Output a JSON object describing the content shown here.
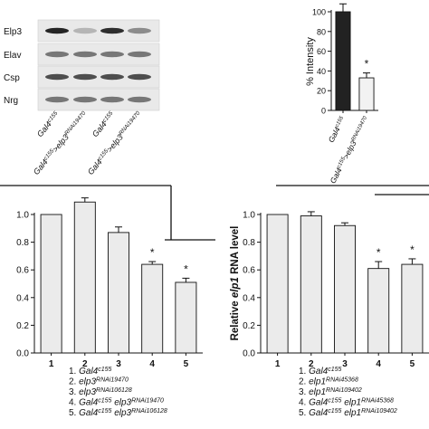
{
  "western_blot": {
    "rows": [
      "Elp3",
      "Elav",
      "Csp",
      "Nrg"
    ],
    "lane_labels": [
      {
        "base": "Gal4",
        "sup": "c155",
        "suffix": "",
        "suffix_sup": ""
      },
      {
        "base": "Gal4",
        "sup": "c155",
        "suffix": ">elp3",
        "suffix_sup": "RNAi19470"
      },
      {
        "base": "Gal4",
        "sup": "c155",
        "suffix": "",
        "suffix_sup": ""
      },
      {
        "base": "Gal4",
        "sup": "c155",
        "suffix": ">elp3",
        "suffix_sup": "RNAi19470"
      }
    ]
  },
  "chart_data": [
    {
      "id": "intensity",
      "type": "bar",
      "ylabel": "% Intensity",
      "ylim": [
        0,
        100
      ],
      "yticks": [
        0,
        20,
        40,
        60,
        80,
        100
      ],
      "categories": [
        {
          "base": "Gal4",
          "sup": "c155",
          "suffix": "",
          "suffix_sup": ""
        },
        {
          "base": "Gal4",
          "sup": "c155",
          "suffix": ">elp3",
          "suffix_sup": "RNAi19470"
        }
      ],
      "values": [
        100,
        33
      ],
      "errors": [
        8,
        5
      ],
      "significance": [
        "",
        "*"
      ],
      "bar_colors": [
        "#222222",
        "#f2f2f2"
      ]
    },
    {
      "id": "elp3-rna",
      "type": "bar",
      "ylabel": "",
      "ylim": [
        0,
        1.0
      ],
      "yticks": [
        "0.0",
        "0.2",
        "0.4",
        "0.6",
        "0.8",
        "1.0"
      ],
      "categories": [
        "1",
        "2",
        "3",
        "4",
        "5"
      ],
      "values": [
        1.0,
        1.09,
        0.87,
        0.64,
        0.51
      ],
      "errors": [
        0.0,
        0.03,
        0.04,
        0.02,
        0.03
      ],
      "significance": [
        "",
        "",
        "",
        "*",
        "*"
      ],
      "bar_color": "#ebebeb",
      "legend": [
        {
          "num": "1.",
          "base": "Gal4",
          "sup": "c155",
          "mid": "",
          "mid_sup": ""
        },
        {
          "num": "2.",
          "base": "elp3",
          "sup": "RNAi19470",
          "mid": "",
          "mid_sup": ""
        },
        {
          "num": "3.",
          "base": "elp3",
          "sup": "RNAi106128",
          "mid": "",
          "mid_sup": ""
        },
        {
          "num": "4.",
          "base": "Gal4",
          "sup": "c155",
          "mid": " elp3",
          "mid_sup": "RNAi19470"
        },
        {
          "num": "5.",
          "base": "Gal4",
          "sup": "c155",
          "mid": " elp3",
          "mid_sup": "RNAi106128"
        }
      ]
    },
    {
      "id": "elp1-rna",
      "type": "bar",
      "ylabel": "Relative elp1 RNA level",
      "ylabel_parts": [
        "Relative ",
        "elp1",
        " RNA level"
      ],
      "ylim": [
        0,
        1.0
      ],
      "yticks": [
        "0.0",
        "0.2",
        "0.4",
        "0.6",
        "0.8",
        "1.0"
      ],
      "categories": [
        "1",
        "2",
        "3",
        "4",
        "5"
      ],
      "values": [
        1.0,
        0.99,
        0.92,
        0.61,
        0.64
      ],
      "errors": [
        0.0,
        0.03,
        0.02,
        0.05,
        0.04
      ],
      "significance": [
        "",
        "",
        "",
        "*",
        "*"
      ],
      "bar_color": "#ebebeb",
      "legend": [
        {
          "num": "1.",
          "base": "Gal4",
          "sup": "c155",
          "mid": "",
          "mid_sup": ""
        },
        {
          "num": "2.",
          "base": "elp1",
          "sup": "RNAi45368",
          "mid": "",
          "mid_sup": ""
        },
        {
          "num": "3.",
          "base": "elp1",
          "sup": "RNAi109402",
          "mid": "",
          "mid_sup": ""
        },
        {
          "num": "4.",
          "base": "Gal4",
          "sup": "c155",
          "mid": " elp1",
          "mid_sup": "RNAi45368"
        },
        {
          "num": "5.",
          "base": "Gal4",
          "sup": "c155",
          "mid": " elp1",
          "mid_sup": "RNAi109402"
        }
      ]
    }
  ]
}
